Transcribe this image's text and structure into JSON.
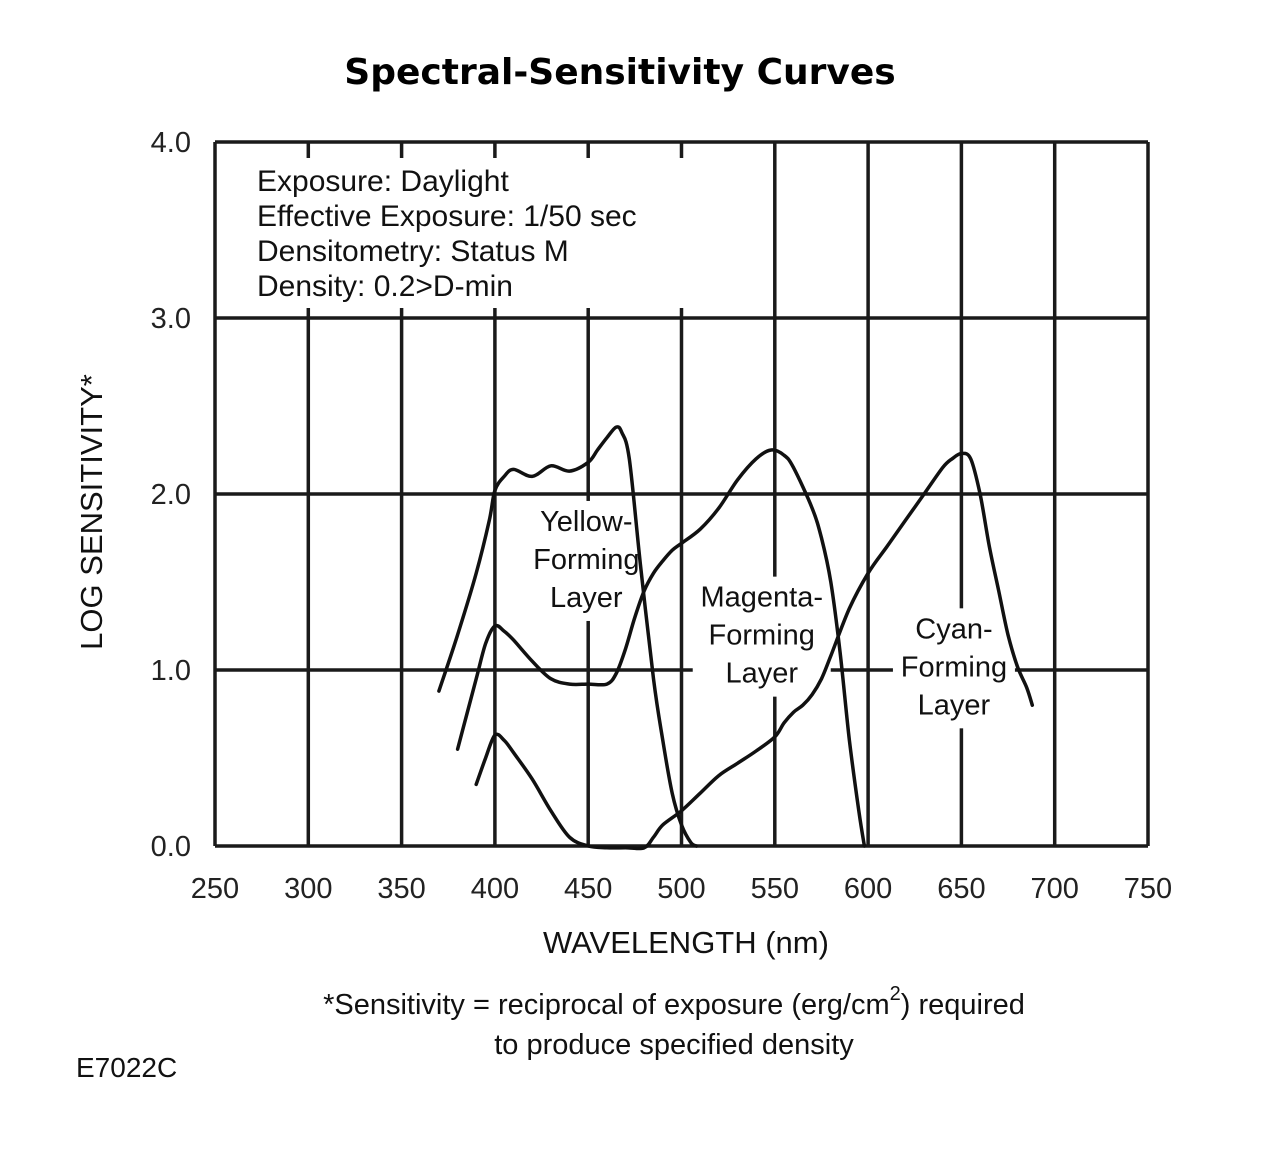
{
  "chart_data": {
    "type": "line",
    "title": "Spectral-Sensitivity Curves",
    "xlabel": "WAVELENGTH (nm)",
    "ylabel": "LOG SENSITIVITY*",
    "xlim": [
      250,
      750
    ],
    "ylim": [
      0,
      4
    ],
    "grid": true,
    "xticks": [
      250,
      300,
      350,
      400,
      450,
      500,
      550,
      600,
      650,
      700,
      750
    ],
    "xtick_labels": [
      "250",
      "300",
      "350",
      "400",
      "450",
      "500",
      "550",
      "600",
      "650",
      "700",
      "750"
    ],
    "yticks": [
      0,
      1,
      2,
      3,
      4
    ],
    "ytick_labels": [
      "0.0",
      "1.0",
      "2.0",
      "3.0",
      "4.0"
    ],
    "info_lines": [
      "Exposure: Daylight",
      "Effective Exposure: 1/50 sec",
      "Densitometry: Status M",
      "Density: 0.2>D-min"
    ],
    "layer_labels": [
      {
        "lines": [
          "Yellow-",
          "Forming",
          "Layer"
        ],
        "x": 449,
        "y": 1.79
      },
      {
        "lines": [
          "Magenta-",
          "Forming",
          "Layer"
        ],
        "x": 543,
        "y": 1.36
      },
      {
        "lines": [
          "Cyan-",
          "Forming",
          "Layer"
        ],
        "x": 646,
        "y": 1.18
      }
    ],
    "series": [
      {
        "name": "Yellow-Forming Layer",
        "x": [
          370,
          380,
          390,
          397,
          400,
          405,
          410,
          420,
          430,
          440,
          450,
          455,
          460,
          465,
          468,
          472,
          478,
          485,
          490,
          495,
          500,
          505,
          508
        ],
        "y": [
          0.88,
          1.2,
          1.55,
          1.85,
          2.02,
          2.1,
          2.14,
          2.1,
          2.16,
          2.13,
          2.18,
          2.25,
          2.32,
          2.38,
          2.35,
          2.2,
          1.6,
          0.95,
          0.6,
          0.3,
          0.12,
          0.02,
          0.0
        ]
      },
      {
        "name": "Magenta-Forming Layer (blue region)",
        "x": [
          380,
          385,
          390,
          395,
          400,
          405,
          410,
          420,
          430,
          440,
          450,
          460,
          465,
          470,
          475,
          480,
          485,
          490,
          495,
          500,
          510,
          520,
          530,
          540,
          548,
          555,
          560,
          570,
          575,
          580,
          585,
          590,
          595,
          598
        ],
        "y": [
          0.55,
          0.75,
          0.95,
          1.15,
          1.25,
          1.22,
          1.17,
          1.05,
          0.95,
          0.92,
          0.92,
          0.92,
          0.98,
          1.12,
          1.3,
          1.45,
          1.55,
          1.62,
          1.68,
          1.72,
          1.8,
          1.92,
          2.08,
          2.2,
          2.25,
          2.22,
          2.15,
          1.92,
          1.75,
          1.5,
          1.1,
          0.6,
          0.2,
          0.0
        ]
      },
      {
        "name": "Cyan-Forming Layer",
        "x": [
          390,
          395,
          400,
          405,
          410,
          420,
          430,
          440,
          450,
          460,
          470,
          480,
          485,
          490,
          500,
          510,
          520,
          530,
          540,
          550,
          555,
          560,
          565,
          570,
          575,
          580,
          590,
          600,
          610,
          620,
          630,
          640,
          645,
          650,
          655,
          660,
          665,
          670,
          675,
          680,
          685,
          688
        ],
        "y": [
          0.35,
          0.5,
          0.63,
          0.6,
          0.53,
          0.38,
          0.2,
          0.05,
          0.0,
          -0.01,
          -0.01,
          -0.01,
          0.05,
          0.12,
          0.2,
          0.3,
          0.4,
          0.47,
          0.54,
          0.62,
          0.7,
          0.76,
          0.8,
          0.86,
          0.95,
          1.08,
          1.35,
          1.55,
          1.7,
          1.85,
          2.0,
          2.15,
          2.2,
          2.23,
          2.2,
          2.0,
          1.7,
          1.45,
          1.2,
          1.02,
          0.9,
          0.8
        ]
      }
    ],
    "footnote": [
      "*Sensitivity = reciprocal of exposure (erg/cm",
      "2",
      ") required",
      "to produce specified density"
    ],
    "figure_code": "E7022C"
  }
}
